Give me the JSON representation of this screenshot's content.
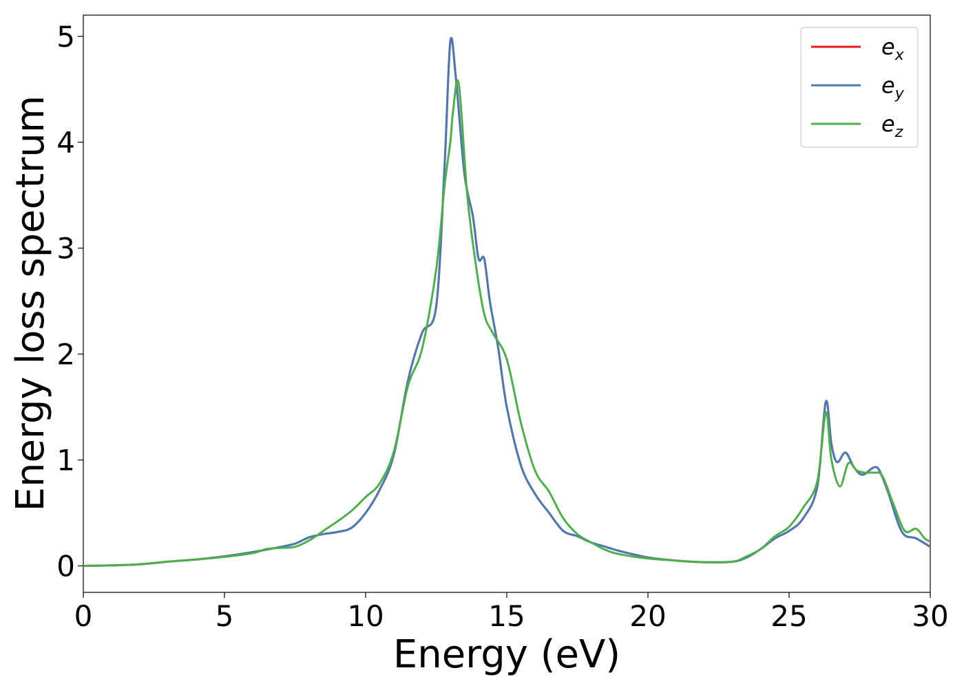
{
  "chart_data": {
    "type": "line",
    "title": "",
    "xlabel": "Energy (eV)",
    "ylabel": "Energy loss spectrum",
    "xlim": [
      0,
      30
    ],
    "ylim": [
      -0.25,
      5.2
    ],
    "xticks": [
      0,
      5,
      10,
      15,
      20,
      25,
      30
    ],
    "xtick_labels": [
      "0",
      "5",
      "10",
      "15",
      "20",
      "25",
      "30"
    ],
    "yticks": [
      0,
      1,
      2,
      3,
      4,
      5
    ],
    "ytick_labels": [
      "0",
      "1",
      "2",
      "3",
      "4",
      "5"
    ],
    "grid": false,
    "legend": {
      "placement": "top-right"
    },
    "series": [
      {
        "name": "e_x",
        "label_base": "e",
        "label_sub": "x",
        "color": "#e41a1c",
        "x": [
          0,
          1,
          2,
          3,
          4,
          5,
          6,
          7,
          7.5,
          8,
          8.5,
          9,
          9.5,
          10,
          10.5,
          11,
          11.5,
          12,
          12.5,
          12.8,
          13.0,
          13.2,
          13.5,
          13.8,
          14.0,
          14.2,
          14.4,
          14.7,
          15,
          15.5,
          16,
          16.5,
          17,
          17.5,
          18,
          18.5,
          19,
          20,
          21,
          22,
          23,
          23.5,
          24,
          24.5,
          25,
          25.5,
          26,
          26.3,
          26.5,
          26.7,
          27.0,
          27.3,
          27.6,
          28.0,
          28.2,
          28.5,
          29,
          29.5,
          30
        ],
        "y": [
          0.0,
          0.005,
          0.015,
          0.04,
          0.06,
          0.09,
          0.13,
          0.18,
          0.21,
          0.27,
          0.3,
          0.32,
          0.36,
          0.5,
          0.72,
          1.05,
          1.75,
          2.2,
          2.45,
          3.8,
          4.95,
          4.6,
          3.7,
          3.3,
          2.9,
          2.9,
          2.5,
          2.05,
          1.5,
          0.95,
          0.68,
          0.5,
          0.33,
          0.28,
          0.22,
          0.18,
          0.14,
          0.08,
          0.05,
          0.035,
          0.04,
          0.08,
          0.16,
          0.26,
          0.33,
          0.45,
          0.75,
          1.55,
          1.15,
          0.98,
          1.07,
          0.93,
          0.86,
          0.93,
          0.9,
          0.7,
          0.32,
          0.26,
          0.18
        ]
      },
      {
        "name": "e_y",
        "label_base": "e",
        "label_sub": "y",
        "color": "#4a7ab5",
        "x": [
          0,
          1,
          2,
          3,
          4,
          5,
          6,
          7,
          7.5,
          8,
          8.5,
          9,
          9.5,
          10,
          10.5,
          11,
          11.5,
          12,
          12.5,
          12.8,
          13.0,
          13.2,
          13.5,
          13.8,
          14.0,
          14.2,
          14.4,
          14.7,
          15,
          15.5,
          16,
          16.5,
          17,
          17.5,
          18,
          18.5,
          19,
          20,
          21,
          22,
          23,
          23.5,
          24,
          24.5,
          25,
          25.5,
          26,
          26.3,
          26.5,
          26.7,
          27.0,
          27.3,
          27.6,
          28.0,
          28.2,
          28.5,
          29,
          29.5,
          30
        ],
        "y": [
          0.0,
          0.005,
          0.015,
          0.04,
          0.06,
          0.09,
          0.13,
          0.18,
          0.21,
          0.27,
          0.3,
          0.32,
          0.36,
          0.5,
          0.72,
          1.05,
          1.75,
          2.2,
          2.45,
          3.8,
          4.95,
          4.6,
          3.7,
          3.3,
          2.9,
          2.9,
          2.5,
          2.05,
          1.5,
          0.95,
          0.68,
          0.5,
          0.33,
          0.28,
          0.22,
          0.18,
          0.14,
          0.08,
          0.05,
          0.035,
          0.04,
          0.08,
          0.16,
          0.26,
          0.33,
          0.45,
          0.75,
          1.55,
          1.15,
          0.98,
          1.07,
          0.93,
          0.86,
          0.93,
          0.9,
          0.7,
          0.32,
          0.26,
          0.18
        ]
      },
      {
        "name": "e_z",
        "label_base": "e",
        "label_sub": "z",
        "color": "#4daf4a",
        "x": [
          0,
          1,
          2,
          3,
          4,
          5,
          6,
          6.5,
          7,
          7.5,
          8,
          8.5,
          9,
          9.5,
          10,
          10.5,
          11,
          11.5,
          12,
          12.5,
          12.8,
          13.0,
          13.1,
          13.3,
          13.6,
          13.9,
          14.2,
          14.5,
          15,
          15.5,
          16,
          16.5,
          17,
          17.5,
          18,
          18.5,
          19,
          20,
          21,
          22,
          23,
          23.5,
          24,
          24.5,
          25,
          25.5,
          26,
          26.3,
          26.5,
          26.8,
          27.1,
          27.4,
          27.7,
          28,
          28.3,
          28.7,
          29.1,
          29.5,
          29.8,
          30
        ],
        "y": [
          0.0,
          0.005,
          0.015,
          0.04,
          0.06,
          0.085,
          0.12,
          0.16,
          0.17,
          0.18,
          0.24,
          0.33,
          0.42,
          0.52,
          0.65,
          0.78,
          1.08,
          1.7,
          2.05,
          2.8,
          3.6,
          4.0,
          4.3,
          4.55,
          3.5,
          2.85,
          2.38,
          2.2,
          1.95,
          1.35,
          0.9,
          0.7,
          0.45,
          0.3,
          0.22,
          0.15,
          0.11,
          0.07,
          0.05,
          0.035,
          0.04,
          0.09,
          0.16,
          0.28,
          0.37,
          0.55,
          0.8,
          1.45,
          1.0,
          0.75,
          0.97,
          0.9,
          0.88,
          0.88,
          0.85,
          0.58,
          0.33,
          0.35,
          0.26,
          0.23
        ]
      }
    ]
  }
}
